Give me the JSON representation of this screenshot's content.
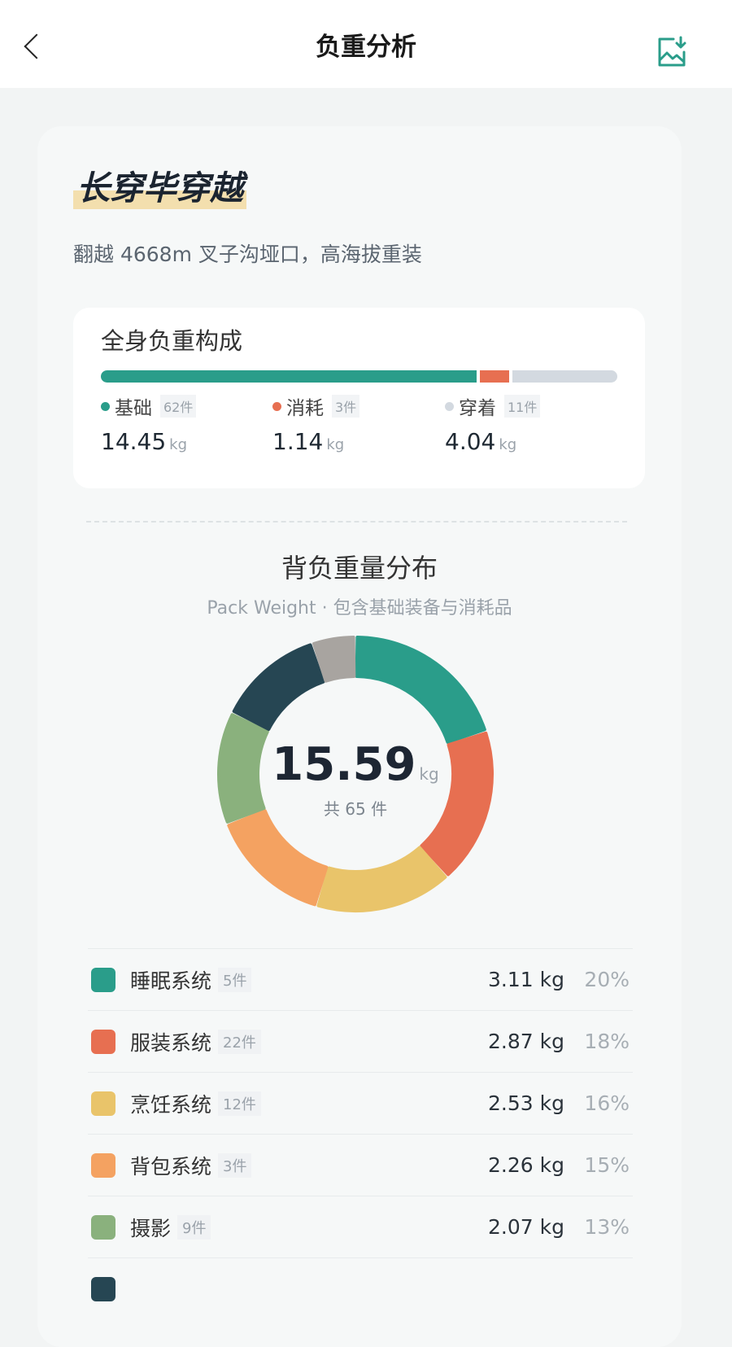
{
  "header": {
    "title": "负重分析",
    "back_icon": "chevron-left-icon",
    "export_icon": "image-download-icon",
    "accent": "#2a9d8a"
  },
  "trip": {
    "name": "长穿毕穿越",
    "description": "翻越 4668m 叉子沟垭口，高海拔重装"
  },
  "composition": {
    "title": "全身负重构成",
    "unit": "kg",
    "items": [
      {
        "label": "基础",
        "count": "62件",
        "weight": "14.45",
        "color": "#2a9d8a"
      },
      {
        "label": "消耗",
        "count": "3件",
        "weight": "1.14",
        "color": "#e76f51"
      },
      {
        "label": "穿着",
        "count": "11件",
        "weight": "4.04",
        "color": "#d3d9e0"
      }
    ]
  },
  "pack": {
    "title": "背负重量分布",
    "subtitle": "Pack Weight · 包含基础装备与消耗品",
    "total": "15.59",
    "unit": "kg",
    "count_text": "共 65 件"
  },
  "chart_data": {
    "type": "pie",
    "variant": "donut",
    "total_kg": 15.59,
    "categories": [
      "睡眠系统",
      "服装系统",
      "烹饪系统",
      "背包系统",
      "摄影",
      "",
      ""
    ],
    "values": [
      3.11,
      2.87,
      2.53,
      2.26,
      2.07,
      1.95,
      0.8
    ],
    "colors": [
      "#2a9d8a",
      "#e76f51",
      "#e9c46a",
      "#f4a261",
      "#8ab17d",
      "#264653",
      "#a8a4a0"
    ]
  },
  "categories": [
    {
      "name": "睡眠系统",
      "count": "5件",
      "weight": "3.11 kg",
      "percent": "20%",
      "color": "#2a9d8a"
    },
    {
      "name": "服装系统",
      "count": "22件",
      "weight": "2.87 kg",
      "percent": "18%",
      "color": "#e76f51"
    },
    {
      "name": "烹饪系统",
      "count": "12件",
      "weight": "2.53 kg",
      "percent": "16%",
      "color": "#e9c46a"
    },
    {
      "name": "背包系统",
      "count": "3件",
      "weight": "2.26 kg",
      "percent": "15%",
      "color": "#f4a261"
    },
    {
      "name": "摄影",
      "count": "9件",
      "weight": "2.07 kg",
      "percent": "13%",
      "color": "#8ab17d"
    }
  ]
}
